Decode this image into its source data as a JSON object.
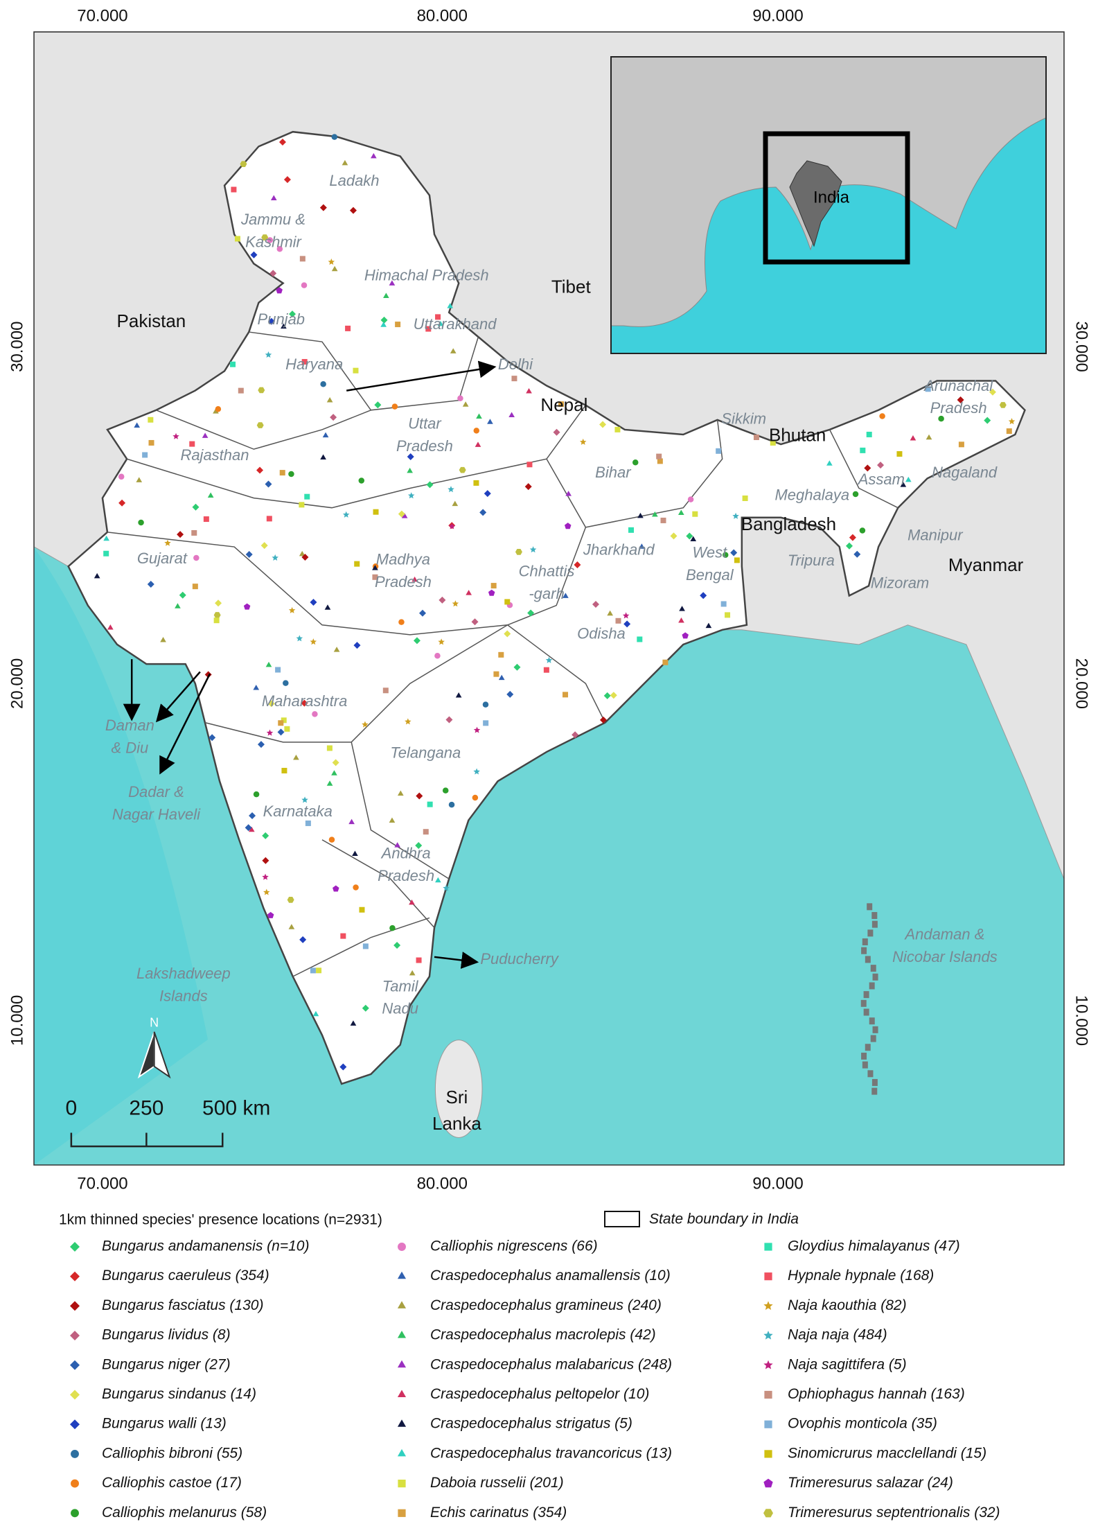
{
  "map": {
    "lon_ticks": [
      "70.000",
      "80.000",
      "90.000"
    ],
    "lat_ticks": [
      "30.000",
      "20.000",
      "10.000"
    ],
    "countries": [
      [
        "Pakistan"
      ],
      [
        "Tibet"
      ],
      [
        "Nepal"
      ],
      [
        "Bhutan"
      ],
      [
        "Bangladesh"
      ],
      [
        "Myanmar"
      ],
      [
        "Sri",
        "Lanka"
      ]
    ],
    "states": [
      [
        "Ladakh"
      ],
      [
        "Jammu &",
        "Kashmir"
      ],
      [
        "Himachal Pradesh"
      ],
      [
        "Punjab"
      ],
      [
        "Uttarakhand"
      ],
      [
        "Haryana"
      ],
      [
        "Delhi"
      ],
      [
        "Uttar",
        "Pradesh"
      ],
      [
        "Rajasthan"
      ],
      [
        "Bihar"
      ],
      [
        "Sikkim"
      ],
      [
        "Arunachal",
        "Pradesh"
      ],
      [
        "Assam"
      ],
      [
        "Nagaland"
      ],
      [
        "Meghalaya"
      ],
      [
        "Manipur"
      ],
      [
        "Tripura"
      ],
      [
        "Mizoram"
      ],
      [
        "West",
        "Bengal"
      ],
      [
        "Jharkhand"
      ],
      [
        "Chhattis",
        "-garh"
      ],
      [
        "Madhya",
        "Pradesh"
      ],
      [
        "Gujarat"
      ],
      [
        "Odisha"
      ],
      [
        "Maharashtra"
      ],
      [
        "Daman",
        "& Diu"
      ],
      [
        "Dadar &",
        "Nagar Haveli"
      ],
      [
        "Telangana"
      ],
      [
        "Karnataka"
      ],
      [
        "Andhra",
        "Pradesh"
      ],
      [
        "Lakshadweep",
        "Islands"
      ],
      [
        "Tamil",
        "Nadu"
      ],
      [
        "Puducherry"
      ],
      [
        "Andaman &",
        "Nicobar Islands"
      ]
    ],
    "inset_label": "India",
    "scale_bar": [
      "0",
      "250",
      "500 km"
    ],
    "north": "N"
  },
  "legend": {
    "title": "1km thinned species' presence locations (n=2931)",
    "boundary": "State boundary in India",
    "items": [
      {
        "name": "Bungarus andamanensis (n=10)",
        "color": "#2ecc71",
        "marker": "diamond"
      },
      {
        "name": "Bungarus caeruleus (354)",
        "color": "#d62728",
        "marker": "diamond"
      },
      {
        "name": "Bungarus fasciatus (130)",
        "color": "#b01010",
        "marker": "diamond"
      },
      {
        "name": "Bungarus lividus (8)",
        "color": "#c06080",
        "marker": "diamond"
      },
      {
        "name": "Bungarus niger (27)",
        "color": "#2b5fb0",
        "marker": "diamond"
      },
      {
        "name": "Bungarus sindanus (14)",
        "color": "#e0e050",
        "marker": "diamond"
      },
      {
        "name": "Bungarus walli (13)",
        "color": "#1f3fbf",
        "marker": "diamond"
      },
      {
        "name": "Calliophis bibroni (55)",
        "color": "#2c6fa0",
        "marker": "circle"
      },
      {
        "name": "Calliophis castoe (17)",
        "color": "#f07f1a",
        "marker": "circle"
      },
      {
        "name": "Calliophis melanurus (58)",
        "color": "#2ca02c",
        "marker": "circle"
      },
      {
        "name": "Calliophis nigrescens (66)",
        "color": "#e377c2",
        "marker": "circle"
      },
      {
        "name": "Craspedocephalus anamallensis (10)",
        "color": "#3060b0",
        "marker": "triangle"
      },
      {
        "name": "Craspedocephalus gramineus (240)",
        "color": "#a8a040",
        "marker": "triangle"
      },
      {
        "name": "Craspedocephalus macrolepis (42)",
        "color": "#30c060",
        "marker": "triangle"
      },
      {
        "name": "Craspedocephalus malabaricus (248)",
        "color": "#9b30c0",
        "marker": "triangle"
      },
      {
        "name": "Craspedocephalus peltopelor (10)",
        "color": "#d03060",
        "marker": "triangle"
      },
      {
        "name": "Craspedocephalus strigatus (5)",
        "color": "#101840",
        "marker": "triangle"
      },
      {
        "name": "Craspedocephalus travancoricus (13)",
        "color": "#30d0c0",
        "marker": "triangle"
      },
      {
        "name": "Daboia russelii (201)",
        "color": "#d8e040",
        "marker": "square"
      },
      {
        "name": "Echis carinatus (354)",
        "color": "#d8a040",
        "marker": "square"
      },
      {
        "name": "Gloydius himalayanus (47)",
        "color": "#30e0b0",
        "marker": "square"
      },
      {
        "name": "Hypnale hypnale (168)",
        "color": "#f05060",
        "marker": "square"
      },
      {
        "name": "Naja kaouthia (82)",
        "color": "#d0a020",
        "marker": "star"
      },
      {
        "name": "Naja naja (484)",
        "color": "#40b0c0",
        "marker": "star"
      },
      {
        "name": "Naja sagittifera (5)",
        "color": "#c02080",
        "marker": "star"
      },
      {
        "name": "Ophiophagus hannah (163)",
        "color": "#c89080",
        "marker": "square"
      },
      {
        "name": "Ovophis monticola (35)",
        "color": "#80b0d8",
        "marker": "square"
      },
      {
        "name": "Sinomicrurus macclellandi (15)",
        "color": "#d0c010",
        "marker": "square"
      },
      {
        "name": "Trimeresurus salazar (24)",
        "color": "#a020c0",
        "marker": "pentagon"
      },
      {
        "name": "Trimeresurus septentrionalis (32)",
        "color": "#c0c040",
        "marker": "hexagon"
      }
    ]
  }
}
